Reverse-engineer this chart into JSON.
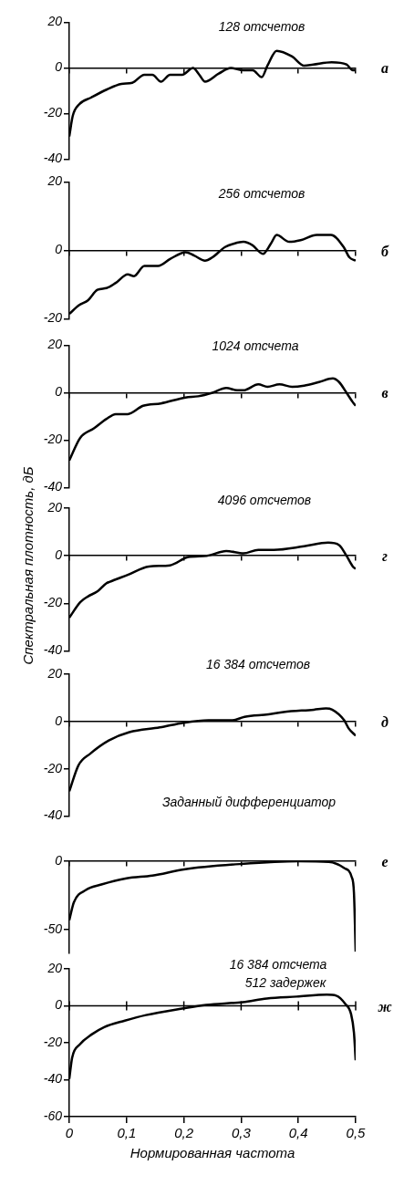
{
  "chart_data": [
    {
      "type": "line",
      "title": "128 отсчетов",
      "annotations": [
        "а"
      ],
      "xlim": [
        0,
        0.5
      ],
      "xticks": [
        0,
        0.1,
        0.2,
        0.3,
        0.4,
        0.5
      ],
      "ylim": [
        -40,
        20
      ],
      "yticks": [
        20,
        0,
        -20,
        -40
      ],
      "tick_labels": "y",
      "x": [
        0,
        0.006,
        0.017,
        0.038,
        0.065,
        0.091,
        0.11,
        0.131,
        0.145,
        0.16,
        0.176,
        0.197,
        0.216,
        0.227,
        0.237,
        0.261,
        0.282,
        0.304,
        0.32,
        0.336,
        0.346,
        0.362,
        0.389,
        0.41,
        0.426,
        0.458,
        0.484,
        0.495,
        0.5
      ],
      "series": [
        {
          "color": "#000000",
          "values": [
            -30,
            -21,
            -16,
            -13,
            -9.5,
            -7,
            -6.5,
            -3,
            -3,
            -6,
            -3,
            -3,
            0,
            -3,
            -6,
            -2.5,
            0,
            -1,
            -1,
            -4,
            1,
            7.5,
            5,
            1,
            1.5,
            2.5,
            1.5,
            -1,
            -1
          ]
        }
      ]
    },
    {
      "type": "line",
      "title": "256 отсчетов",
      "annotations": [
        "б"
      ],
      "xlim": [
        0,
        0.5
      ],
      "xticks": [
        0,
        0.1,
        0.2,
        0.3,
        0.4,
        0.5
      ],
      "ylim": [
        -20,
        20
      ],
      "yticks": [
        20,
        0,
        -20
      ],
      "tick_labels": "y",
      "x": [
        0,
        0.017,
        0.033,
        0.049,
        0.065,
        0.081,
        0.102,
        0.113,
        0.131,
        0.155,
        0.176,
        0.203,
        0.218,
        0.237,
        0.25,
        0.272,
        0.288,
        0.304,
        0.32,
        0.338,
        0.352,
        0.362,
        0.384,
        0.404,
        0.432,
        0.457,
        0.479,
        0.489,
        0.5
      ],
      "series": [
        {
          "color": "#000000",
          "values": [
            -18.5,
            -16,
            -14.5,
            -11.5,
            -11,
            -9.5,
            -7,
            -7.5,
            -4.5,
            -4.5,
            -2.5,
            -0.5,
            -1.5,
            -3,
            -2,
            1,
            2,
            2.5,
            1.5,
            -1,
            2,
            4.5,
            2.5,
            3,
            4.5,
            4.5,
            1,
            -2,
            -3
          ]
        }
      ]
    },
    {
      "type": "line",
      "title": "1024 отсчета",
      "annotations": [
        "в"
      ],
      "xlim": [
        0,
        0.5
      ],
      "xticks": [
        0,
        0.1,
        0.2,
        0.3,
        0.4,
        0.5
      ],
      "ylim": [
        -40,
        20
      ],
      "yticks": [
        20,
        0,
        -20,
        -40
      ],
      "tick_labels": "y",
      "x": [
        0,
        0.019,
        0.043,
        0.065,
        0.081,
        0.102,
        0.129,
        0.16,
        0.203,
        0.225,
        0.25,
        0.274,
        0.293,
        0.304,
        0.33,
        0.346,
        0.367,
        0.389,
        0.41,
        0.436,
        0.46,
        0.471,
        0.484,
        0.495,
        0.5
      ],
      "series": [
        {
          "color": "#000000",
          "values": [
            -28.5,
            -19,
            -15,
            -11,
            -9,
            -9,
            -5.5,
            -4.5,
            -2,
            -1.5,
            0,
            2,
            1,
            1,
            3.5,
            2.5,
            3.5,
            2.5,
            3,
            4.5,
            6,
            4.5,
            0,
            -4,
            -5.5
          ]
        }
      ]
    },
    {
      "type": "line",
      "title": "4096 отсчетов",
      "ylabel": "Спектральная плотность, дБ",
      "annotations": [
        "г"
      ],
      "xlim": [
        0,
        0.5
      ],
      "xticks": [
        0,
        0.1,
        0.2,
        0.3,
        0.4,
        0.5
      ],
      "ylim": [
        -40,
        20
      ],
      "yticks": [
        20,
        0,
        -20,
        -40
      ],
      "tick_labels": "y",
      "x": [
        0,
        0.019,
        0.033,
        0.049,
        0.065,
        0.07,
        0.102,
        0.139,
        0.176,
        0.208,
        0.24,
        0.274,
        0.304,
        0.33,
        0.357,
        0.41,
        0.452,
        0.471,
        0.484,
        0.495,
        0.5
      ],
      "series": [
        {
          "color": "#000000",
          "values": [
            -26,
            -19.5,
            -17,
            -15,
            -11.5,
            -11,
            -8,
            -4.5,
            -4,
            -0.5,
            0,
            2,
            1,
            2.5,
            2.5,
            4,
            5.5,
            4.5,
            0,
            -4.5,
            -5.5
          ]
        }
      ]
    },
    {
      "type": "line",
      "title": "16 384 отсчетов",
      "annotations": [
        "д"
      ],
      "xlim": [
        0,
        0.5
      ],
      "xticks": [
        0,
        0.1,
        0.2,
        0.3,
        0.4,
        0.5
      ],
      "ylim": [
        -40,
        20
      ],
      "yticks": [
        20,
        0,
        -20,
        -40
      ],
      "tick_labels": "y",
      "x": [
        0,
        0.016,
        0.037,
        0.069,
        0.105,
        0.158,
        0.2,
        0.243,
        0.285,
        0.306,
        0.348,
        0.374,
        0.427,
        0.448,
        0.459,
        0.48,
        0.488,
        0.5
      ],
      "series": [
        {
          "color": "#000000",
          "values": [
            -29.5,
            -18.5,
            -13.5,
            -8,
            -4.5,
            -2.5,
            -0.5,
            0.5,
            0.5,
            2,
            3,
            4,
            5,
            5.5,
            5,
            0.5,
            -3,
            -6
          ]
        }
      ]
    },
    {
      "type": "line",
      "title": "Заданный дифференциатор",
      "annotations": [
        "е"
      ],
      "xlim": [
        0,
        0.5
      ],
      "xticks": [
        0,
        0.1,
        0.2,
        0.3,
        0.4,
        0.5
      ],
      "ylim": [
        -67,
        0
      ],
      "yticks": [
        0,
        -50
      ],
      "tick_labels": "y",
      "x": [
        0,
        0.008,
        0.029,
        0.056,
        0.1,
        0.145,
        0.2,
        0.3,
        0.4,
        0.453,
        0.48,
        0.493,
        0.497,
        0.5
      ],
      "series": [
        {
          "color": "#000000",
          "values": [
            -43,
            -30,
            -21,
            -17,
            -12.5,
            -10.5,
            -6,
            -2,
            0,
            -0.5,
            -5,
            -11.5,
            -23,
            -66
          ]
        }
      ]
    },
    {
      "type": "line",
      "title": "16 384 отсчета",
      "subtitle": "512 задержек",
      "xlabel": "Нормированная частота",
      "annotations": [
        "ж"
      ],
      "xlim": [
        0,
        0.5
      ],
      "xticks": [
        0,
        {
          "value": 0.1,
          "label": "0,1"
        },
        {
          "value": 0.2,
          "label": "0,2"
        },
        {
          "value": 0.3,
          "label": "0,3"
        },
        {
          "value": 0.4,
          "label": "0,4"
        },
        {
          "value": 0.5,
          "label": "0,5"
        }
      ],
      "ylim": [
        -60,
        20
      ],
      "yticks": [
        20,
        0,
        -20,
        -40,
        -60
      ],
      "ref_lines": [
        {
          "axis": "y",
          "value": 0
        }
      ],
      "x": [
        0,
        0.005,
        0.018,
        0.039,
        0.061,
        0.097,
        0.134,
        0.197,
        0.239,
        0.303,
        0.345,
        0.397,
        0.45,
        0.466,
        0.482,
        0.492,
        0.497,
        0.5
      ],
      "series": [
        {
          "color": "#000000",
          "values": [
            -39.5,
            -28,
            -21,
            -15.5,
            -11.5,
            -8,
            -5,
            -1.5,
            0.5,
            2,
            4,
            5,
            6,
            5.5,
            1,
            -4.5,
            -14.5,
            -29.5
          ]
        }
      ]
    }
  ]
}
